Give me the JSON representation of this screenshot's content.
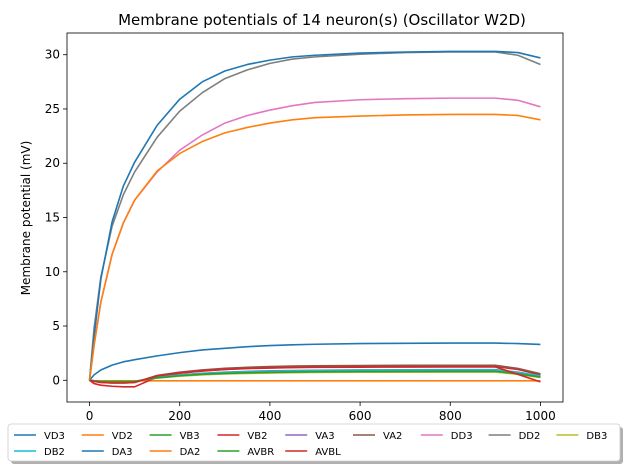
{
  "chart_data": {
    "type": "line",
    "title": "Membrane potentials of 14 neuron(s) (Oscillator W2D)",
    "xlabel": "",
    "ylabel": "Membrane potential (mV)",
    "xlim": [
      -50,
      1050
    ],
    "ylim": [
      -2,
      32
    ],
    "xticks": [
      0,
      200,
      400,
      600,
      800,
      1000
    ],
    "yticks": [
      0,
      5,
      10,
      15,
      20,
      25,
      30
    ],
    "grid": false,
    "legend_position": "bottom, below axes",
    "x": [
      0,
      10,
      25,
      50,
      75,
      100,
      150,
      200,
      250,
      300,
      350,
      400,
      450,
      500,
      600,
      700,
      800,
      900,
      950,
      1000
    ],
    "series": [
      {
        "name": "VD3",
        "color": "#1f77b4",
        "values": [
          0,
          0.5,
          0.95,
          1.4,
          1.7,
          1.9,
          2.25,
          2.55,
          2.8,
          2.95,
          3.1,
          3.2,
          3.27,
          3.32,
          3.38,
          3.41,
          3.43,
          3.43,
          3.38,
          3.3
        ]
      },
      {
        "name": "VD2",
        "color": "#ff7f0e",
        "values": [
          0,
          -0.05,
          -0.05,
          -0.05,
          -0.05,
          -0.05,
          -0.05,
          -0.05,
          -0.05,
          -0.05,
          -0.05,
          -0.05,
          -0.05,
          -0.05,
          -0.05,
          -0.05,
          -0.05,
          -0.05,
          -0.05,
          -0.05
        ]
      },
      {
        "name": "VB3",
        "color": "#2ca02c",
        "values": [
          0,
          -0.05,
          -0.1,
          -0.15,
          -0.15,
          -0.1,
          0.25,
          0.45,
          0.6,
          0.7,
          0.77,
          0.82,
          0.86,
          0.88,
          0.9,
          0.92,
          0.93,
          0.93,
          0.7,
          0.35
        ]
      },
      {
        "name": "VB2",
        "color": "#d62728",
        "values": [
          0,
          -0.3,
          -0.45,
          -0.55,
          -0.6,
          -0.6,
          0.3,
          0.65,
          0.85,
          1.0,
          1.1,
          1.15,
          1.2,
          1.22,
          1.25,
          1.26,
          1.27,
          1.27,
          1.0,
          0.5
        ]
      },
      {
        "name": "VA3",
        "color": "#9467bd",
        "values": [
          0,
          -0.05,
          -0.1,
          -0.15,
          -0.15,
          -0.1,
          0.3,
          0.5,
          0.65,
          0.75,
          0.82,
          0.87,
          0.9,
          0.92,
          0.95,
          0.97,
          0.98,
          0.98,
          0.75,
          0.4
        ]
      },
      {
        "name": "VA2",
        "color": "#8c564b",
        "values": [
          0,
          -0.1,
          -0.2,
          -0.25,
          -0.25,
          -0.2,
          0.45,
          0.75,
          0.95,
          1.1,
          1.2,
          1.27,
          1.31,
          1.33,
          1.36,
          1.38,
          1.38,
          1.38,
          1.1,
          0.6
        ]
      },
      {
        "name": "DD3",
        "color": "#e377c2",
        "values": [
          0,
          3.2,
          7.2,
          11.6,
          14.5,
          16.6,
          19.2,
          21.2,
          22.6,
          23.7,
          24.4,
          24.9,
          25.3,
          25.6,
          25.85,
          25.95,
          26.0,
          26.0,
          25.8,
          25.2
        ]
      },
      {
        "name": "DD2",
        "color": "#7f7f7f",
        "values": [
          0,
          4.8,
          9.5,
          14.2,
          17.1,
          19.2,
          22.4,
          24.8,
          26.5,
          27.8,
          28.6,
          29.2,
          29.6,
          29.8,
          30.05,
          30.2,
          30.25,
          30.25,
          29.95,
          29.1
        ]
      },
      {
        "name": "DB3",
        "color": "#bcbd22",
        "values": [
          0,
          -0.05,
          -0.1,
          -0.15,
          -0.15,
          -0.1,
          0.2,
          0.38,
          0.5,
          0.58,
          0.63,
          0.67,
          0.7,
          0.72,
          0.74,
          0.75,
          0.76,
          0.76,
          0.55,
          0.25
        ]
      },
      {
        "name": "DB2",
        "color": "#17becf",
        "values": [
          0,
          -0.05,
          -0.1,
          -0.15,
          -0.15,
          -0.1,
          0.28,
          0.48,
          0.62,
          0.72,
          0.79,
          0.84,
          0.87,
          0.89,
          0.92,
          0.94,
          0.95,
          0.95,
          0.72,
          0.4
        ]
      },
      {
        "name": "DA3",
        "color": "#1f77b4",
        "values": [
          0,
          4.0,
          9.3,
          14.6,
          17.9,
          20.1,
          23.5,
          25.9,
          27.5,
          28.5,
          29.1,
          29.5,
          29.8,
          29.95,
          30.15,
          30.25,
          30.3,
          30.3,
          30.2,
          29.7
        ]
      },
      {
        "name": "DA2",
        "color": "#ff7f0e",
        "values": [
          0,
          3.2,
          7.2,
          11.6,
          14.5,
          16.6,
          19.3,
          20.9,
          22.0,
          22.8,
          23.3,
          23.7,
          24.0,
          24.2,
          24.35,
          24.45,
          24.5,
          24.5,
          24.4,
          24.0
        ]
      },
      {
        "name": "AVBR",
        "color": "#2ca02c",
        "values": [
          0,
          -0.05,
          -0.1,
          -0.12,
          -0.12,
          -0.1,
          0.22,
          0.42,
          0.55,
          0.63,
          0.69,
          0.73,
          0.76,
          0.78,
          0.8,
          0.81,
          0.82,
          0.82,
          0.6,
          0.3
        ]
      },
      {
        "name": "AVBL",
        "color": "#d62728",
        "values": [
          0,
          -0.1,
          -0.2,
          -0.25,
          -0.25,
          -0.2,
          0.4,
          0.68,
          0.87,
          1.0,
          1.08,
          1.13,
          1.17,
          1.19,
          1.21,
          1.22,
          1.23,
          1.23,
          0.55,
          -0.15
        ]
      }
    ],
    "brown_curve_note_ignore": null
  }
}
